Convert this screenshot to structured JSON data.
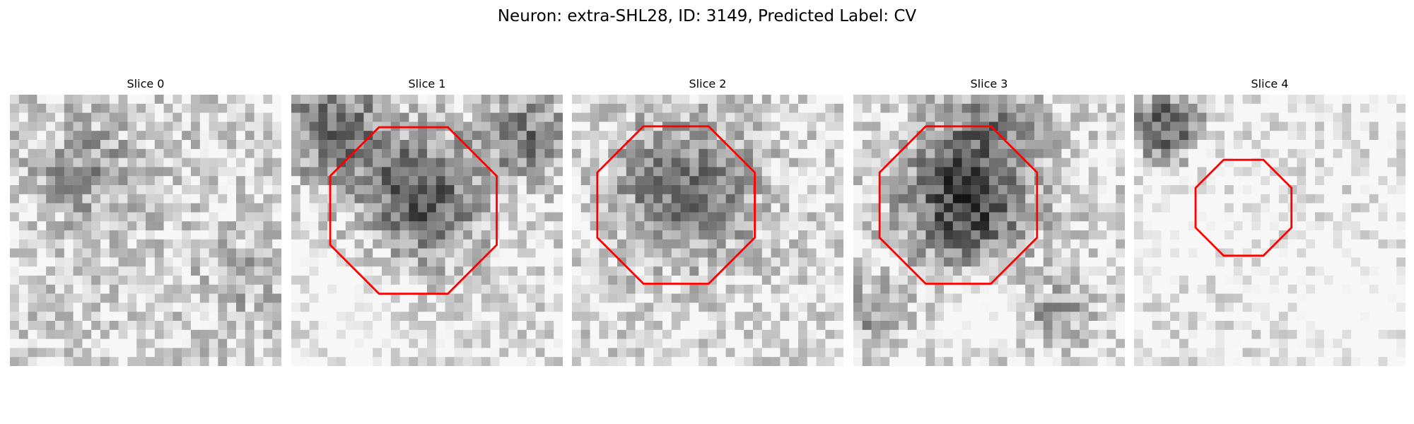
{
  "figure": {
    "title": "Neuron: extra-SHL28, ID: 3149, Predicted Label: CV"
  },
  "slices": [
    {
      "label": "Slice 0",
      "has_outline": false
    },
    {
      "label": "Slice 1",
      "has_outline": true
    },
    {
      "label": "Slice 2",
      "has_outline": true
    },
    {
      "label": "Slice 3",
      "has_outline": true
    },
    {
      "label": "Slice 4",
      "has_outline": true
    }
  ],
  "colors": {
    "outline": "#ff0000",
    "colormap": "grayscale"
  }
}
